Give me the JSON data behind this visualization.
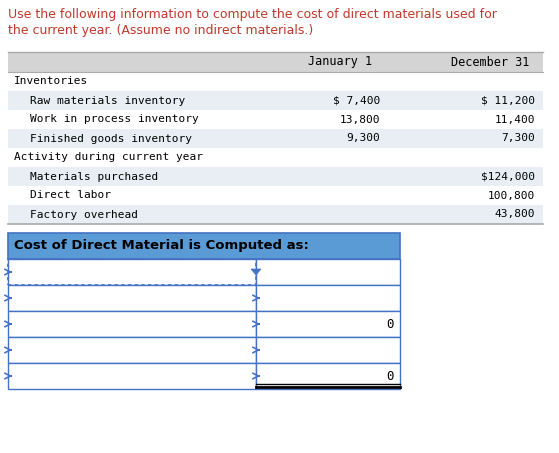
{
  "title_line1": "Use the following information to compute the cost of direct materials used for",
  "title_line2": "the current year. (Assume no indirect materials.)",
  "title_color": "#c0392b",
  "header_jan": "January 1",
  "header_dec": "December 31",
  "rows": [
    {
      "label": "Inventories",
      "indent": 0,
      "jan": "",
      "dec": ""
    },
    {
      "label": "Raw materials inventory",
      "indent": 1,
      "jan": "$ 7,400",
      "dec": "$ 11,200"
    },
    {
      "label": "Work in process inventory",
      "indent": 1,
      "jan": "13,800",
      "dec": "11,400"
    },
    {
      "label": "Finished goods inventory",
      "indent": 1,
      "jan": "9,300",
      "dec": "7,300"
    },
    {
      "label": "Activity during current year",
      "indent": 0,
      "jan": "",
      "dec": ""
    },
    {
      "label": "Materials purchased",
      "indent": 1,
      "jan": "",
      "dec": "$124,000"
    },
    {
      "label": "Direct labor",
      "indent": 1,
      "jan": "",
      "dec": "100,800"
    },
    {
      "label": "Factory overhead",
      "indent": 1,
      "jan": "",
      "dec": "43,800"
    }
  ],
  "table_header_bg": "#d4d4d4",
  "table_row_bg_even": "#efefef",
  "table_row_bg_odd": "#ffffff",
  "computed_title": "Cost of Direct Material is Computed as:",
  "computed_title_bg": "#5b9bd5",
  "computed_title_color": "#000000",
  "computed_border": "#4472c4",
  "num_comp_rows": 5,
  "bg_color": "#ffffff"
}
